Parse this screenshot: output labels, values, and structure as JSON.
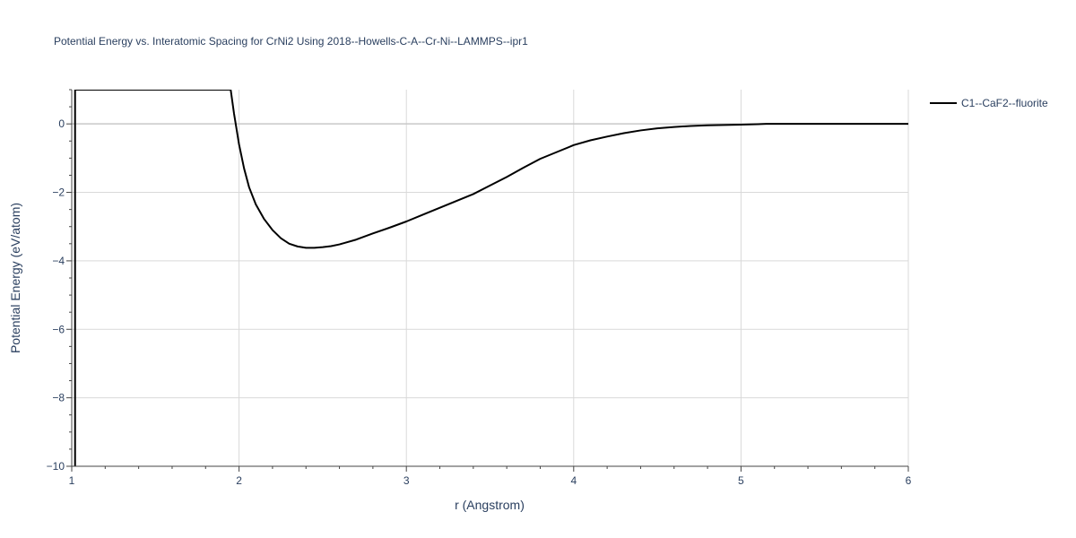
{
  "chart_data": {
    "type": "line",
    "title": "Potential Energy vs. Interatomic Spacing for CrNi2 Using 2018--Howells-C-A--Cr-Ni--LAMMPS--ipr1",
    "xlabel": "r (Angstrom)",
    "ylabel": "Potential Energy (eV/atom)",
    "xlim": [
      1,
      6
    ],
    "ylim": [
      -10,
      1
    ],
    "xticks": [
      1,
      2,
      3,
      4,
      5,
      6
    ],
    "xtick_labels": [
      "1",
      "2",
      "3",
      "4",
      "5",
      "6"
    ],
    "yticks": [
      0,
      -2,
      -4,
      -6,
      -8,
      -10
    ],
    "ytick_labels": [
      "0",
      "−2",
      "−4",
      "−6",
      "−8",
      "−10"
    ],
    "grid": true,
    "legend_position": "top-right",
    "series": [
      {
        "name": "C1--CaF2--fluorite",
        "color": "#000000",
        "x": [
          1.02,
          1.02,
          1.95,
          1.97,
          2.0,
          2.03,
          2.06,
          2.1,
          2.15,
          2.2,
          2.25,
          2.3,
          2.35,
          2.4,
          2.45,
          2.5,
          2.55,
          2.6,
          2.7,
          2.8,
          2.9,
          3.0,
          3.1,
          3.2,
          3.3,
          3.4,
          3.5,
          3.6,
          3.7,
          3.8,
          3.9,
          4.0,
          4.1,
          4.2,
          4.3,
          4.4,
          4.5,
          4.6,
          4.7,
          4.8,
          4.9,
          5.0,
          5.1,
          5.15,
          5.5,
          6.0
        ],
        "y": [
          -10,
          1,
          1.0,
          0.3,
          -0.6,
          -1.3,
          -1.85,
          -2.35,
          -2.78,
          -3.1,
          -3.34,
          -3.5,
          -3.58,
          -3.62,
          -3.62,
          -3.6,
          -3.57,
          -3.52,
          -3.38,
          -3.2,
          -3.03,
          -2.85,
          -2.65,
          -2.45,
          -2.25,
          -2.05,
          -1.8,
          -1.55,
          -1.28,
          -1.02,
          -0.82,
          -0.62,
          -0.48,
          -0.37,
          -0.27,
          -0.19,
          -0.13,
          -0.09,
          -0.06,
          -0.04,
          -0.03,
          -0.02,
          -0.01,
          0.0,
          0.0,
          0.0
        ]
      }
    ]
  }
}
